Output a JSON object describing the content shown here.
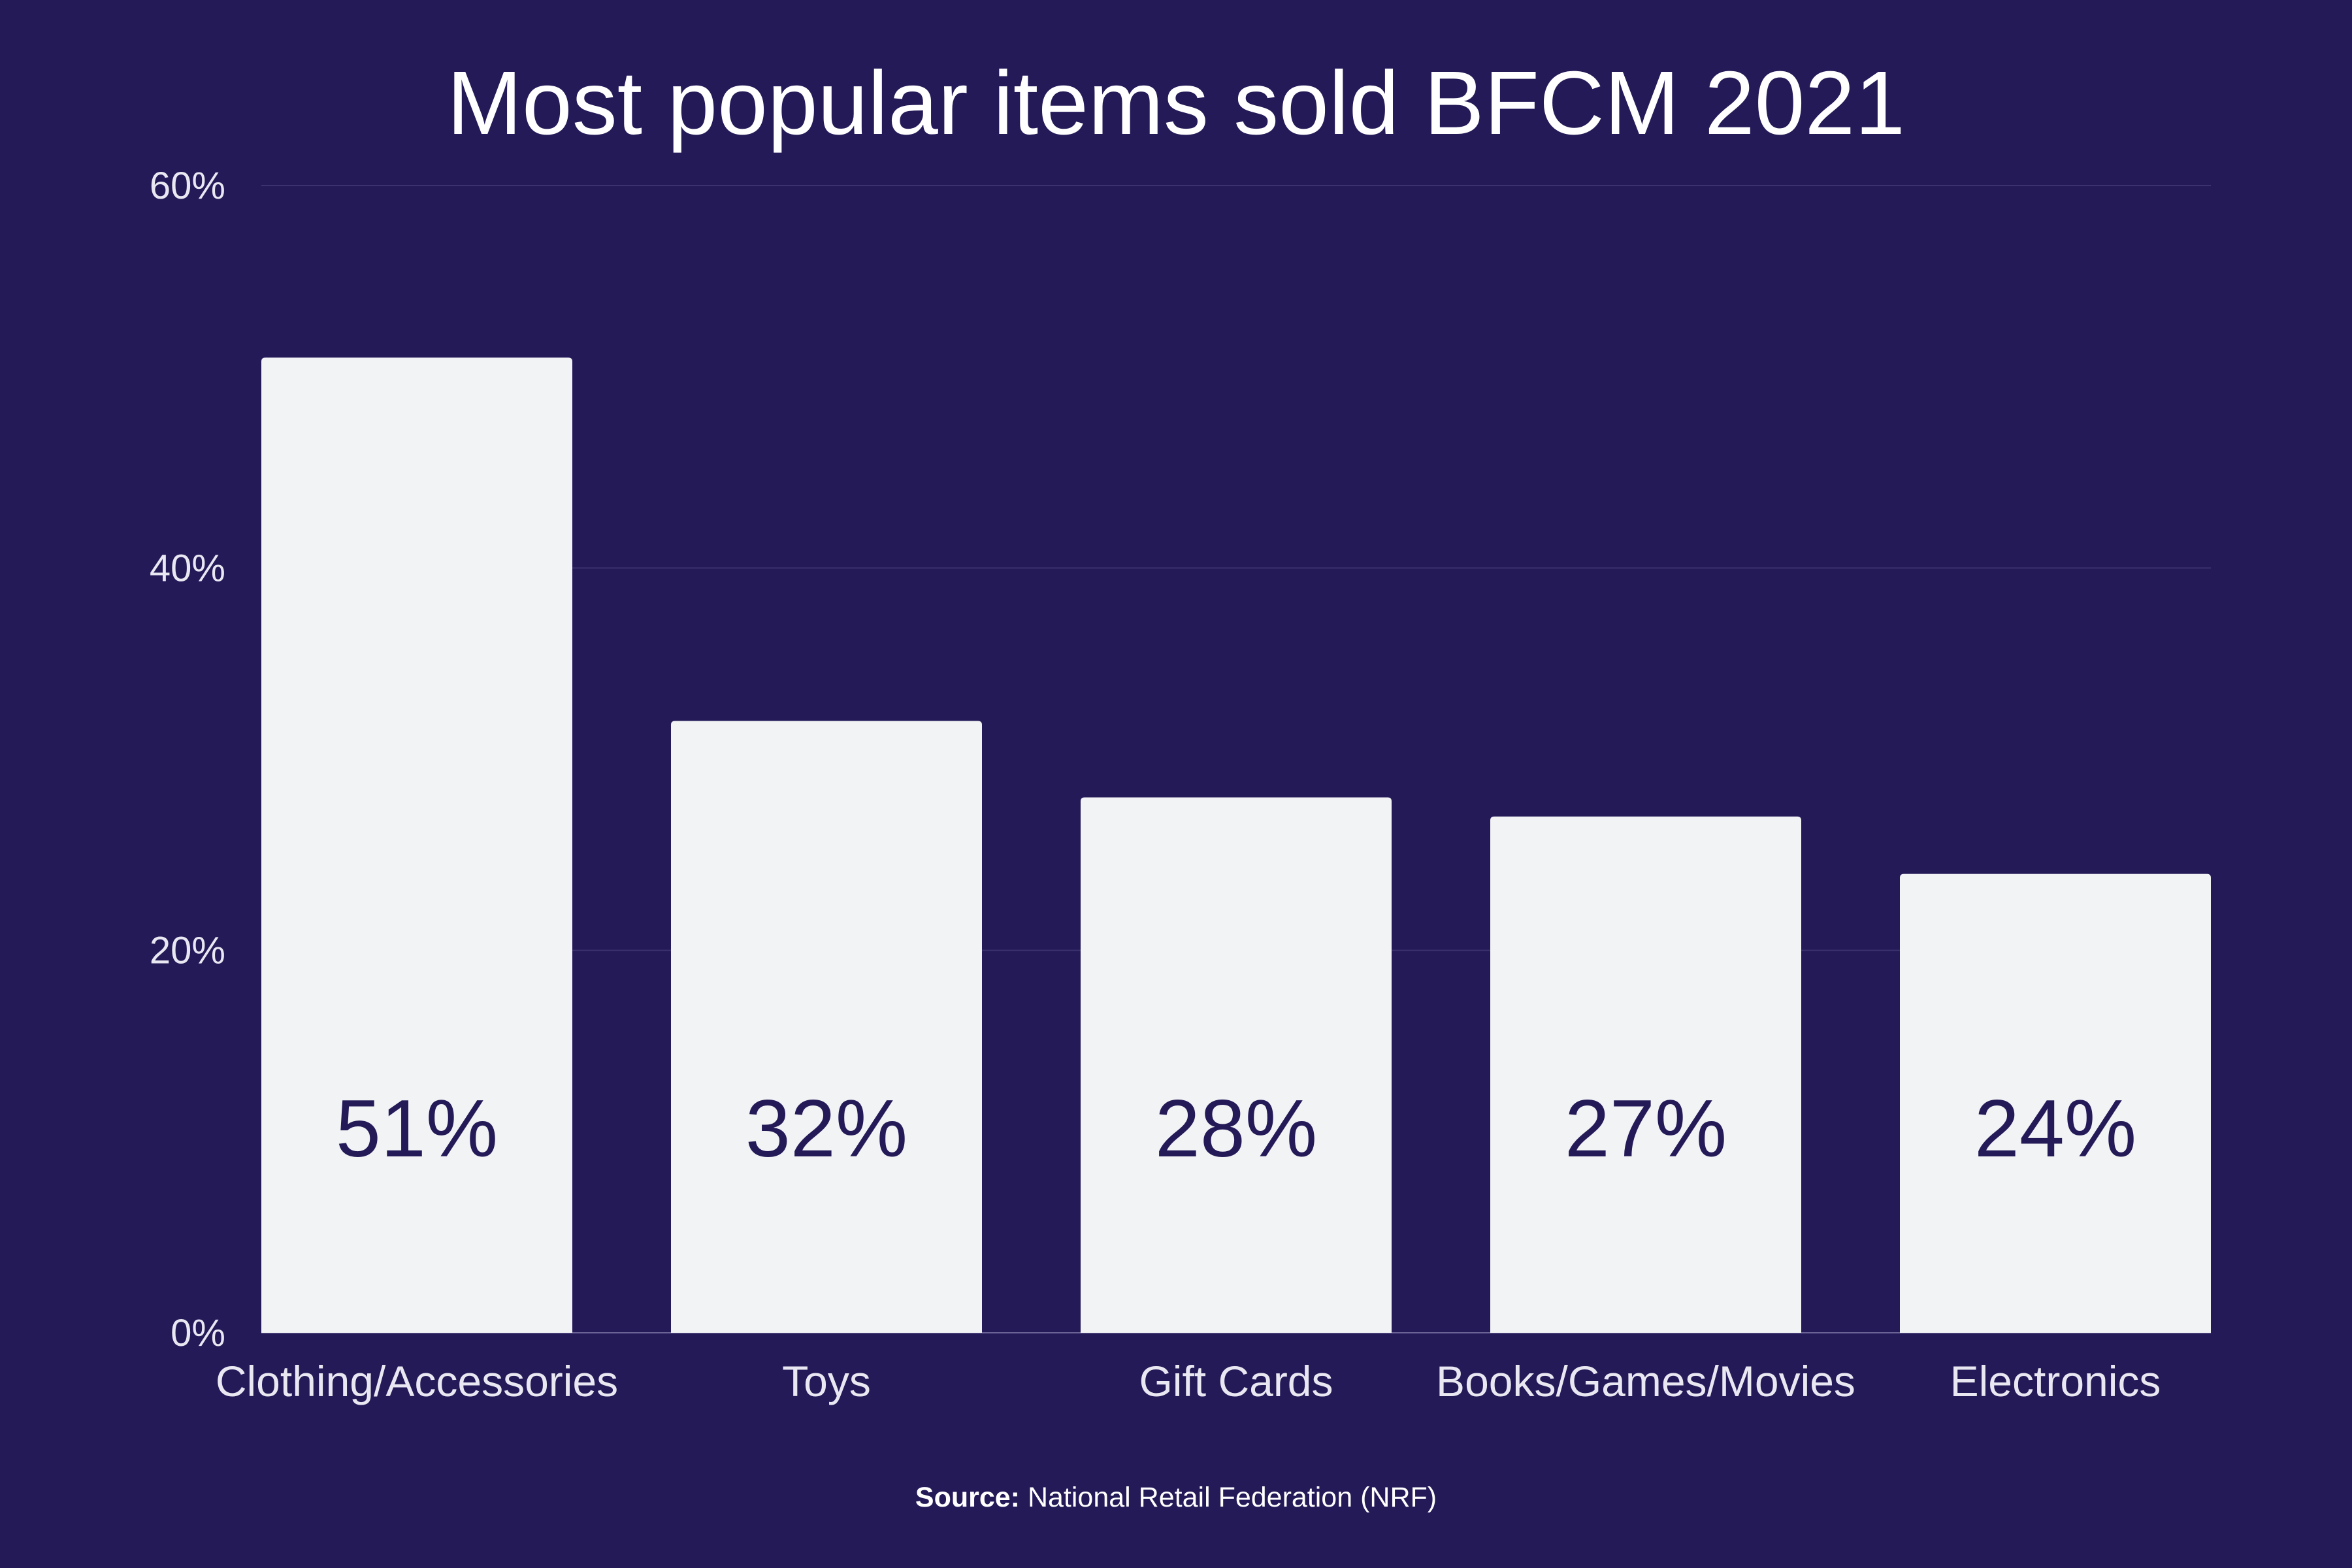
{
  "chart_data": {
    "type": "bar",
    "title": "Most popular items sold BFCM 2021",
    "categories": [
      "Clothing/Accessories",
      "Toys",
      "Gift Cards",
      "Books/Games/Movies",
      "Electronics"
    ],
    "values": [
      51,
      32,
      28,
      27,
      24
    ],
    "data_labels": [
      "51%",
      "32%",
      "28%",
      "27%",
      "24%"
    ],
    "yticks": [
      0,
      20,
      40,
      60
    ],
    "ytick_labels": [
      "0%",
      "20%",
      "40%",
      "60%"
    ],
    "ylim": [
      0,
      60
    ],
    "grid": true,
    "legend": "none"
  },
  "source": {
    "label": "Source:",
    "text": "National Retail Federation (NRF)"
  },
  "colors": {
    "background": "#241a58",
    "bar": "#f2f3f5",
    "bar_label": "#241a58",
    "text": "#ffffff",
    "grid": "#3b3270"
  }
}
